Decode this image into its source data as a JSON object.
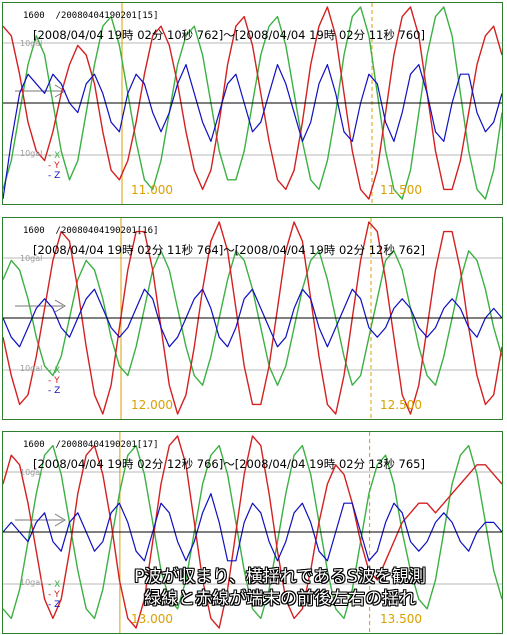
{
  "panels": [
    {
      "channel_label": "1600",
      "record_id": "/20080404190201[15]",
      "time_range": "[2008/04/04 19時 02分 10秒 762]～[2008/04/04 19時 02分 11秒 760]",
      "y_top_label": "10gal",
      "y_bottom_label": "10gal",
      "legend": [
        "X",
        "Y",
        "Z"
      ],
      "time_ticks": [
        "11.000",
        "11.500"
      ]
    },
    {
      "channel_label": "1600",
      "record_id": "/20080404190201[16]",
      "time_range": "[2008/04/04 19時 02分 11秒 764]～[2008/04/04 19時 02分 12秒 762]",
      "y_top_label": "10gal",
      "y_bottom_label": "10gal",
      "legend": [
        "X",
        "Y",
        "Z"
      ],
      "time_ticks": [
        "12.000",
        "12.500"
      ]
    },
    {
      "channel_label": "1600",
      "record_id": "/20080404190201[17]",
      "time_range": "[2008/04/04 19時 02分 12秒 766]～[2008/04/04 19時 02分 13秒 765]",
      "y_top_label": "10gal",
      "y_bottom_label": "10gal",
      "legend": [
        "X",
        "Y",
        "Z"
      ],
      "time_ticks": [
        "13.000",
        "13.500"
      ]
    }
  ],
  "caption": {
    "line1": "P波が収まり、横揺れであるS波を観測",
    "line2": "緑線と赤線が端末の前後左右の揺れ"
  },
  "colors": {
    "x": "#3cb043",
    "y": "#d42020",
    "z": "#1010c0",
    "frame": "#2f7d2f",
    "tick": "#d9a000"
  },
  "chart_data": [
    {
      "type": "line",
      "xlabel": "",
      "ylabel": "",
      "x_range": [
        10.762,
        11.76
      ],
      "ylim": [
        -10,
        10
      ],
      "x_ticks": [
        11.0,
        11.5
      ],
      "series": [
        {
          "name": "X",
          "values": [
            -9,
            -6,
            -1,
            4,
            7,
            5,
            0,
            -5,
            -8,
            -6,
            -1,
            4,
            8,
            9,
            6,
            1,
            -4,
            -8,
            -9,
            -6,
            -1,
            4,
            7,
            8,
            5,
            0,
            -5,
            -8,
            -8,
            -5,
            0,
            5,
            8,
            9,
            6,
            1,
            -4,
            -8,
            -9,
            -6,
            -1,
            5,
            9,
            10,
            7,
            1,
            -5,
            -9,
            -10,
            -7,
            -1,
            5,
            9,
            10,
            7,
            1,
            -5,
            -9,
            -10,
            -7,
            -1
          ]
        },
        {
          "name": "Y",
          "values": [
            8,
            7,
            3,
            -2,
            -5,
            -6,
            -3,
            1,
            4,
            6,
            5,
            2,
            -3,
            -7,
            -8,
            -6,
            -2,
            3,
            7,
            8,
            6,
            2,
            -3,
            -7,
            -9,
            -7,
            -2,
            4,
            8,
            9,
            6,
            1,
            -4,
            -8,
            -9,
            -7,
            -2,
            4,
            8,
            10,
            7,
            1,
            -5,
            -9,
            -10,
            -7,
            -1,
            5,
            9,
            10,
            7,
            1,
            -5,
            -9,
            -9,
            -6,
            -1,
            4,
            7,
            8,
            5
          ]
        },
        {
          "name": "Z",
          "values": [
            -10,
            -4,
            1,
            3,
            2,
            1,
            3,
            2,
            0,
            -1,
            2,
            3,
            1,
            -2,
            -3,
            1,
            3,
            2,
            -1,
            -3,
            -1,
            2,
            4,
            1,
            -2,
            -4,
            -1,
            2,
            3,
            0,
            -3,
            -2,
            1,
            4,
            2,
            -1,
            -4,
            -2,
            2,
            4,
            1,
            -3,
            -4,
            0,
            3,
            2,
            -2,
            -4,
            -1,
            3,
            4,
            1,
            -3,
            -4,
            0,
            3,
            3,
            -1,
            -3,
            -2,
            1
          ]
        }
      ]
    },
    {
      "type": "line",
      "xlabel": "",
      "ylabel": "",
      "x_range": [
        11.764,
        12.762
      ],
      "ylim": [
        -10,
        10
      ],
      "x_ticks": [
        12.0,
        12.5
      ],
      "series": [
        {
          "name": "X",
          "values": [
            4,
            6,
            5,
            2,
            -2,
            -5,
            -6,
            -4,
            0,
            4,
            6,
            5,
            2,
            -2,
            -5,
            -6,
            -3,
            1,
            5,
            7,
            5,
            1,
            -3,
            -6,
            -7,
            -4,
            0,
            4,
            7,
            6,
            3,
            -1,
            -5,
            -7,
            -5,
            -1,
            3,
            6,
            7,
            4,
            0,
            -4,
            -7,
            -6,
            -2,
            2,
            6,
            7,
            5,
            1,
            -3,
            -6,
            -7,
            -4,
            0,
            4,
            7,
            6,
            3,
            -1,
            -4
          ]
        },
        {
          "name": "Y",
          "values": [
            -2,
            -6,
            -9,
            -8,
            -4,
            1,
            6,
            9,
            8,
            3,
            -3,
            -8,
            -10,
            -7,
            -1,
            5,
            9,
            9,
            5,
            -1,
            -7,
            -10,
            -8,
            -3,
            3,
            8,
            10,
            7,
            1,
            -5,
            -9,
            -9,
            -5,
            1,
            7,
            10,
            8,
            2,
            -4,
            -9,
            -10,
            -6,
            0,
            6,
            10,
            9,
            4,
            -2,
            -8,
            -10,
            -7,
            -1,
            5,
            9,
            9,
            5,
            -1,
            -6,
            -9,
            -8,
            -3
          ]
        },
        {
          "name": "Z",
          "values": [
            0,
            -2,
            -3,
            -1,
            1,
            2,
            1,
            -1,
            -2,
            0,
            2,
            3,
            1,
            -1,
            -2,
            -1,
            1,
            3,
            2,
            -1,
            -3,
            -2,
            0,
            2,
            3,
            1,
            -2,
            -3,
            -1,
            2,
            3,
            1,
            -1,
            -3,
            -2,
            1,
            3,
            2,
            -1,
            -3,
            -1,
            1,
            3,
            2,
            -1,
            -2,
            -1,
            1,
            2,
            1,
            -1,
            -2,
            -1,
            1,
            2,
            1,
            -1,
            -2,
            0,
            1,
            0
          ]
        }
      ]
    },
    {
      "type": "line",
      "xlabel": "",
      "ylabel": "",
      "x_range": [
        12.766,
        13.765
      ],
      "ylim": [
        -10,
        10
      ],
      "x_ticks": [
        13.0,
        13.5
      ],
      "series": [
        {
          "name": "X",
          "values": [
            -8,
            -9,
            -6,
            -1,
            4,
            8,
            9,
            6,
            1,
            -4,
            -8,
            -9,
            -6,
            -1,
            4,
            8,
            9,
            6,
            1,
            -4,
            -7,
            -8,
            -5,
            0,
            5,
            8,
            9,
            6,
            1,
            -4,
            -8,
            -9,
            -6,
            -1,
            4,
            8,
            9,
            6,
            1,
            -4,
            -8,
            -9,
            -6,
            -1,
            4,
            7,
            8,
            5,
            0,
            -4,
            -7,
            -8,
            -5,
            0,
            5,
            8,
            9,
            6,
            1,
            -4,
            -7
          ]
        },
        {
          "name": "Y",
          "values": [
            5,
            8,
            7,
            3,
            -2,
            -7,
            -9,
            -7,
            -2,
            4,
            8,
            9,
            6,
            1,
            -5,
            -9,
            -10,
            -7,
            -1,
            5,
            9,
            10,
            7,
            1,
            -5,
            -9,
            -10,
            -6,
            0,
            6,
            10,
            9,
            4,
            -2,
            -7,
            -9,
            -8,
            -4,
            1,
            5,
            7,
            6,
            3,
            -1,
            -4,
            -5,
            -3,
            -1,
            1,
            2,
            3,
            3,
            2,
            3,
            4,
            5,
            6,
            7,
            7,
            6,
            5
          ]
        },
        {
          "name": "Z",
          "values": [
            0,
            1,
            0,
            -1,
            1,
            2,
            -1,
            -2,
            1,
            2,
            0,
            -2,
            -1,
            2,
            3,
            1,
            -2,
            -3,
            0,
            3,
            2,
            -1,
            -3,
            -1,
            2,
            4,
            1,
            -3,
            -3,
            1,
            3,
            2,
            -1,
            -3,
            -1,
            2,
            3,
            1,
            -2,
            -3,
            0,
            3,
            3,
            0,
            -3,
            -2,
            1,
            3,
            2,
            -1,
            -2,
            -1,
            1,
            2,
            1,
            -1,
            -2,
            0,
            1,
            1,
            0
          ]
        }
      ]
    }
  ]
}
